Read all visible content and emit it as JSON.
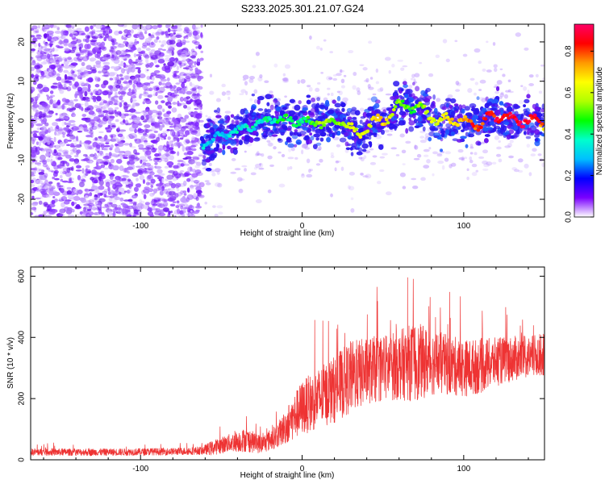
{
  "figure_title": "S233.2025.301.21.07.G24",
  "chart_data": [
    {
      "type": "heatmap",
      "title": "S233.2025.301.21.07.G24",
      "xlabel": "Height of straight line (km)",
      "ylabel": "Frequency (Hz)",
      "xlim": [
        -168,
        150
      ],
      "ylim": [
        -24.5,
        24.5
      ],
      "xticks": [
        -100,
        0,
        100
      ],
      "xtick_labels": [
        "-100",
        "0",
        "100"
      ],
      "yticks": [
        -20,
        -10,
        0,
        10,
        20
      ],
      "ytick_labels": [
        "-20",
        "-10",
        "0",
        "10",
        "20"
      ],
      "noise_region_x_end": -62,
      "ridge": {
        "x": [
          -62,
          -55,
          -48,
          -40,
          -32,
          -25,
          -18,
          -12,
          -5,
          0,
          5,
          10,
          15,
          20,
          25,
          30,
          35,
          40,
          45,
          50,
          55,
          60,
          65,
          70,
          75,
          80,
          85,
          90,
          95,
          100,
          105,
          110,
          115,
          120,
          125,
          130,
          135,
          140,
          145,
          150
        ],
        "freq_hz": [
          -6,
          -5,
          -3,
          -3,
          -1,
          -1,
          1,
          0,
          0,
          0,
          -1,
          0,
          -1,
          0,
          0,
          -2,
          -4,
          -2,
          0,
          0,
          1,
          4,
          4,
          3,
          3,
          1,
          -1,
          1,
          0,
          0,
          -1,
          -1,
          1,
          1,
          1,
          0,
          0,
          0,
          0,
          -1
        ],
        "amplitude": [
          0.3,
          0.32,
          0.3,
          0.34,
          0.36,
          0.35,
          0.38,
          0.42,
          0.45,
          0.4,
          0.45,
          0.52,
          0.58,
          0.5,
          0.55,
          0.6,
          0.62,
          0.65,
          0.68,
          0.66,
          0.62,
          0.55,
          0.5,
          0.48,
          0.55,
          0.62,
          0.6,
          0.66,
          0.7,
          0.72,
          0.8,
          0.78,
          0.82,
          0.86,
          0.84,
          0.88,
          0.9,
          0.88,
          0.86,
          0.7
        ]
      }
    },
    {
      "type": "line",
      "xlabel": "Height of straight line (km)",
      "ylabel": "SNR (10 * v/v)",
      "xlim": [
        -168,
        150
      ],
      "ylim": [
        0,
        630
      ],
      "xticks": [
        -100,
        0,
        100
      ],
      "xtick_labels": [
        "-100",
        "0",
        "100"
      ],
      "yticks": [
        0,
        200,
        400,
        600
      ],
      "ytick_labels": [
        "0",
        "200",
        "400",
        "600"
      ],
      "series": [
        {
          "name": "SNR",
          "color": "#ee3333",
          "envelope_x": [
            -168,
            -120,
            -80,
            -62,
            -55,
            -45,
            -35,
            -25,
            -15,
            -10,
            -5,
            0,
            10,
            20,
            30,
            40,
            50,
            60,
            70,
            80,
            90,
            100,
            110,
            120,
            130,
            140,
            150
          ],
          "envelope_mean": [
            25,
            25,
            27,
            30,
            40,
            55,
            65,
            50,
            80,
            110,
            140,
            170,
            200,
            230,
            270,
            290,
            300,
            310,
            320,
            320,
            310,
            300,
            305,
            320,
            330,
            335,
            345
          ],
          "envelope_spread": [
            12,
            12,
            12,
            14,
            25,
            30,
            40,
            30,
            40,
            60,
            75,
            90,
            100,
            110,
            120,
            110,
            110,
            115,
            130,
            110,
            100,
            95,
            90,
            80,
            75,
            70,
            70
          ]
        }
      ]
    }
  ],
  "colorbar": {
    "label": "Normalized spectral amplitude",
    "range": [
      0,
      0.93
    ],
    "ticks": [
      0.0,
      0.2,
      0.4,
      0.6,
      0.8
    ],
    "tick_labels": [
      "0.0",
      "0.2",
      "0.4",
      "0.6",
      "0.8"
    ],
    "stops": [
      "#ffffff",
      "#7a00ff",
      "#0000ff",
      "#00bfff",
      "#00ffcc",
      "#00ff00",
      "#b0ff00",
      "#ffff00",
      "#ff9900",
      "#ff0000",
      "#ff0066"
    ]
  }
}
